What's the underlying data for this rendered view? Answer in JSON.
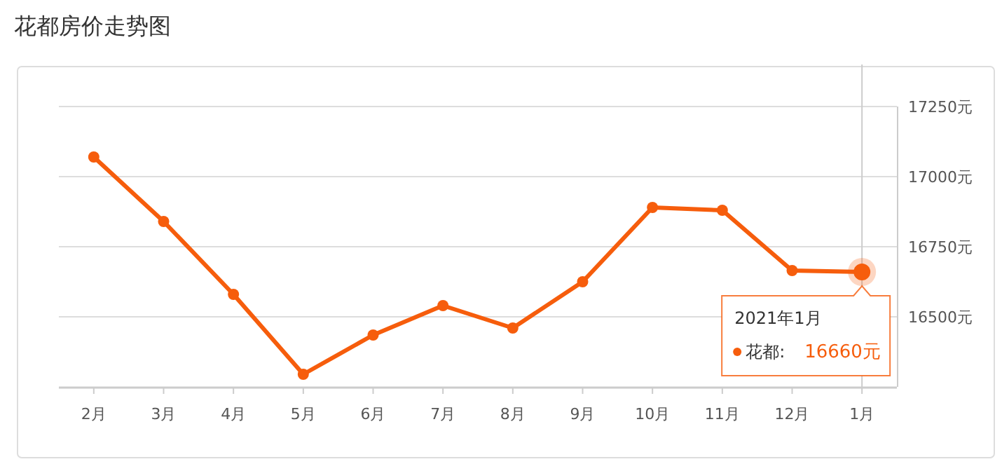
{
  "chart_data": {
    "type": "line",
    "title": "花都房价走势图",
    "categories": [
      "2月",
      "3月",
      "4月",
      "5月",
      "6月",
      "7月",
      "8月",
      "9月",
      "10月",
      "11月",
      "12月",
      "1月"
    ],
    "series": [
      {
        "name": "花都:",
        "color": "#f65d0c",
        "values": [
          17070,
          16840,
          16580,
          16295,
          16435,
          16540,
          16460,
          16625,
          16890,
          16880,
          16665,
          16660
        ],
        "value_labels": [
          null,
          null,
          null,
          null,
          null,
          null,
          null,
          null,
          null,
          null,
          null,
          "16660元"
        ]
      }
    ],
    "annotations": [
      "2021年1月"
    ],
    "ref_lines": [
      {
        "axis": "x",
        "value": "1月",
        "color": "#cccccc"
      }
    ],
    "ylim": [
      16250,
      17250
    ],
    "yticks": [
      {
        "value": 16500,
        "label": "16500元"
      },
      {
        "value": 16750,
        "label": "16750元"
      },
      {
        "value": 17000,
        "label": "17000元"
      },
      {
        "value": 17250,
        "label": "17250元"
      }
    ],
    "grid": "y",
    "marker": "circle",
    "line_style": "solid"
  }
}
